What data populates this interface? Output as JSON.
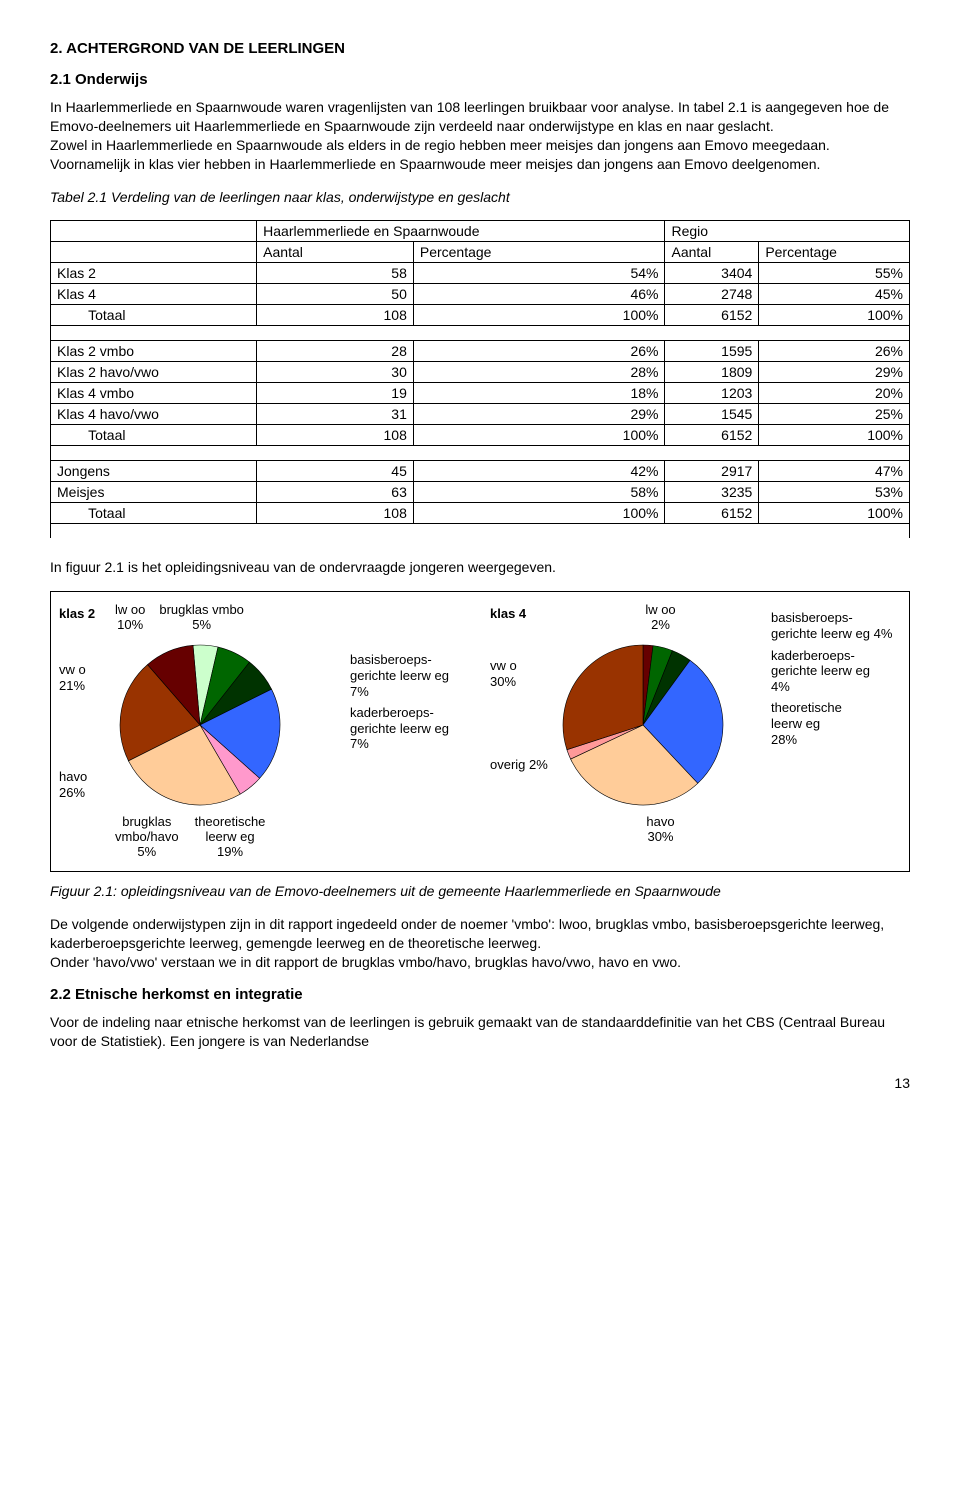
{
  "heading_main": "2. ACHTERGROND VAN DE LEERLINGEN",
  "heading_sub1": "2.1 Onderwijs",
  "para1": "In Haarlemmerliede en Spaarnwoude waren vragenlijsten van 108 leerlingen bruikbaar voor analyse. In tabel 2.1 is aangegeven hoe de Emovo-deelnemers uit Haarlemmerliede en Spaarnwoude zijn verdeeld naar onderwijstype en klas en naar geslacht.",
  "para2": "Zowel in Haarlemmerliede en Spaarnwoude als elders in de regio hebben meer meisjes dan jongens aan Emovo meegedaan. Voornamelijk in klas vier hebben in Haarlemmerliede en Spaarnwoude meer meisjes dan jongens aan Emovo deelgenomen.",
  "table_caption": "Tabel 2.1 Verdeling van de leerlingen naar klas, onderwijstype en geslacht",
  "table": {
    "head_group1": "Haarlemmerliede en Spaarnwoude",
    "head_group2": "Regio",
    "col_aantal": "Aantal",
    "col_percentage": "Percentage",
    "rows1": [
      {
        "label": "Klas 2",
        "a": "58",
        "p": "54%",
        "ra": "3404",
        "rp": "55%"
      },
      {
        "label": "Klas 4",
        "a": "50",
        "p": "46%",
        "ra": "2748",
        "rp": "45%"
      },
      {
        "label": "Totaal",
        "a": "108",
        "p": "100%",
        "ra": "6152",
        "rp": "100%",
        "indent": true
      }
    ],
    "rows2": [
      {
        "label": "Klas 2 vmbo",
        "a": "28",
        "p": "26%",
        "ra": "1595",
        "rp": "26%"
      },
      {
        "label": "Klas 2 havo/vwo",
        "a": "30",
        "p": "28%",
        "ra": "1809",
        "rp": "29%"
      },
      {
        "label": "Klas 4 vmbo",
        "a": "19",
        "p": "18%",
        "ra": "1203",
        "rp": "20%"
      },
      {
        "label": "Klas 4 havo/vwo",
        "a": "31",
        "p": "29%",
        "ra": "1545",
        "rp": "25%"
      },
      {
        "label": "Totaal",
        "a": "108",
        "p": "100%",
        "ra": "6152",
        "rp": "100%",
        "indent": true
      }
    ],
    "rows3": [
      {
        "label": "Jongens",
        "a": "45",
        "p": "42%",
        "ra": "2917",
        "rp": "47%"
      },
      {
        "label": "Meisjes",
        "a": "63",
        "p": "58%",
        "ra": "3235",
        "rp": "53%"
      },
      {
        "label": "Totaal",
        "a": "108",
        "p": "100%",
        "ra": "6152",
        "rp": "100%",
        "indent": true
      }
    ]
  },
  "para3": "In figuur 2.1 is het opleidingsniveau van de ondervraagde jongeren weergegeven.",
  "charts": {
    "klas2": {
      "title": "klas 2",
      "slices": [
        {
          "label": "brugklas vmbo",
          "pct": 5,
          "color": "#ccffcc"
        },
        {
          "label": "basisberoeps-gerichte leerw eg",
          "pct": 7,
          "color": "#006600"
        },
        {
          "label": "kaderberoeps-gerichte leerw eg",
          "pct": 7,
          "color": "#003300"
        },
        {
          "label": "theoretische leerw eg",
          "pct": 19,
          "color": "#3366ff"
        },
        {
          "label": "brugklas vmbo/havo",
          "pct": 5,
          "color": "#ff99cc"
        },
        {
          "label": "havo",
          "pct": 26,
          "color": "#ffcc99"
        },
        {
          "label": "vw o",
          "pct": 21,
          "color": "#993300"
        },
        {
          "label": "lw oo",
          "pct": 10,
          "color": "#660000"
        }
      ],
      "label_left": [
        {
          "t": "vw o",
          "s": "21%"
        },
        {
          "t": "havo",
          "s": "26%"
        }
      ],
      "label_top": [
        {
          "t": "lw oo",
          "s": "10%"
        },
        {
          "t": "brugklas vmbo",
          "s": "5%"
        }
      ],
      "label_right": [
        {
          "t": "basisberoeps-",
          "t2": "gerichte leerw eg",
          "s": "7%"
        },
        {
          "t": "kaderberoeps-",
          "t2": "gerichte leerw eg",
          "s": "7%"
        }
      ],
      "label_bottom": [
        {
          "t": "brugklas",
          "t2": "vmbo/havo",
          "s": "5%"
        },
        {
          "t": "theoretische",
          "t2": "leerw eg",
          "s": "19%"
        }
      ]
    },
    "klas4": {
      "title": "klas 4",
      "slices": [
        {
          "label": "lw oo",
          "pct": 2,
          "color": "#660000"
        },
        {
          "label": "basisberoeps-gerichte leerw eg",
          "pct": 4,
          "color": "#006600"
        },
        {
          "label": "kaderberoeps-gerichte leerw eg",
          "pct": 4,
          "color": "#003300"
        },
        {
          "label": "theoretische leerw eg",
          "pct": 28,
          "color": "#3366ff"
        },
        {
          "label": "havo",
          "pct": 30,
          "color": "#ffcc99"
        },
        {
          "label": "overig",
          "pct": 2,
          "color": "#ff9999"
        },
        {
          "label": "vw o",
          "pct": 30,
          "color": "#993300"
        }
      ],
      "label_left": [
        {
          "t": "vw o",
          "s": "30%"
        },
        {
          "t": "overig 2%",
          "s": ""
        }
      ],
      "label_top": [
        {
          "t": "lw oo",
          "s": "2%"
        }
      ],
      "label_right": [
        {
          "t": "basisberoeps-",
          "t2": "gerichte leerw eg 4%",
          "s": ""
        },
        {
          "t": "kaderberoeps-",
          "t2": "gerichte leerw eg",
          "s": "4%"
        },
        {
          "t": "theoretische",
          "t2": "leerw eg",
          "s": "28%"
        }
      ],
      "label_bottom": [
        {
          "t": "havo",
          "s": "30%"
        }
      ]
    }
  },
  "figure_caption": "Figuur 2.1: opleidingsniveau van de Emovo-deelnemers uit  de gemeente Haarlemmerliede en Spaarnwoude",
  "para4": "De volgende onderwijstypen zijn in dit rapport ingedeeld onder de noemer 'vmbo': lwoo, brugklas vmbo, basisberoepsgerichte leerweg, kaderberoepsgerichte leerweg, gemengde leerweg en de theoretische leerweg.",
  "para5": "Onder 'havo/vwo' verstaan we in dit rapport de brugklas vmbo/havo, brugklas havo/vwo, havo en vwo.",
  "heading_sub2": "2.2 Etnische herkomst en integratie",
  "para6": "Voor de indeling naar etnische herkomst van de leerlingen is gebruik gemaakt van de standaarddefinitie van het CBS (Centraal Bureau voor de Statistiek). Een jongere is van Nederlandse",
  "page_number": "13"
}
